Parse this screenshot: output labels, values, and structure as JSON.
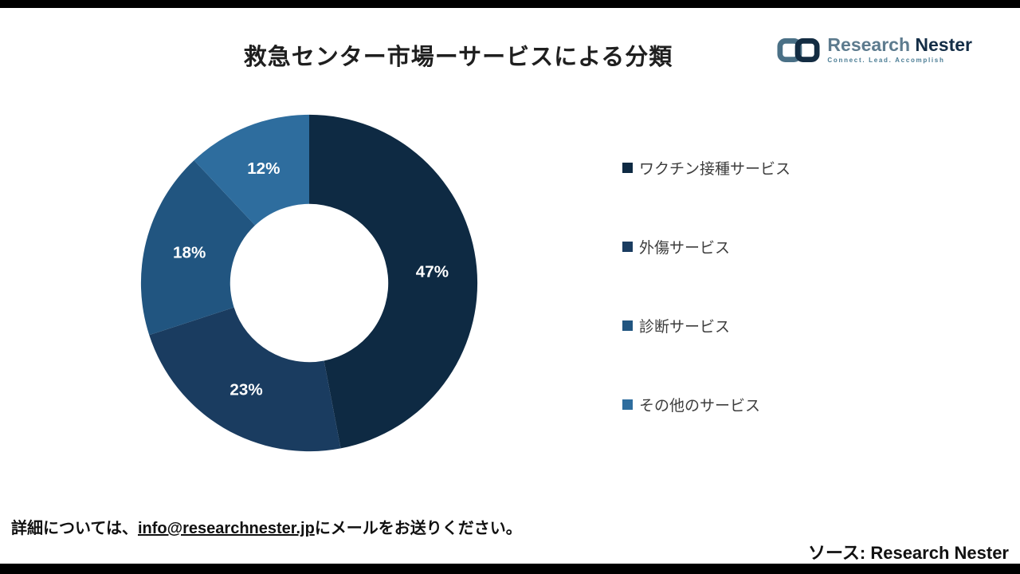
{
  "page": {
    "title": "救急センター市場ーサービスによる分類",
    "footer_note_prefix": "詳細については、",
    "footer_email": "info@researchnester.jp",
    "footer_note_suffix": "にメールをお送りください。",
    "source_label": "ソース: Research Nester"
  },
  "brand": {
    "name_part1": "Research",
    "name_part2": "Nester",
    "tagline": "Connect. Lead. Accomplish"
  },
  "chart_data": {
    "type": "pie",
    "donut": true,
    "title": "救急センター市場ーサービスによる分類",
    "labels": [
      "ワクチン接種サービス",
      "外傷サービス",
      "診断サービス",
      "その他のサービス"
    ],
    "values": [
      47,
      23,
      18,
      12
    ],
    "data_labels": [
      "47%",
      "23%",
      "18%",
      "12%"
    ],
    "colors": [
      "#0e2a43",
      "#1a3c60",
      "#215580",
      "#2e6d9e"
    ],
    "inner_radius_ratio": 0.47,
    "start_angle_deg": 0,
    "direction": "clockwise",
    "legend_position": "right"
  }
}
